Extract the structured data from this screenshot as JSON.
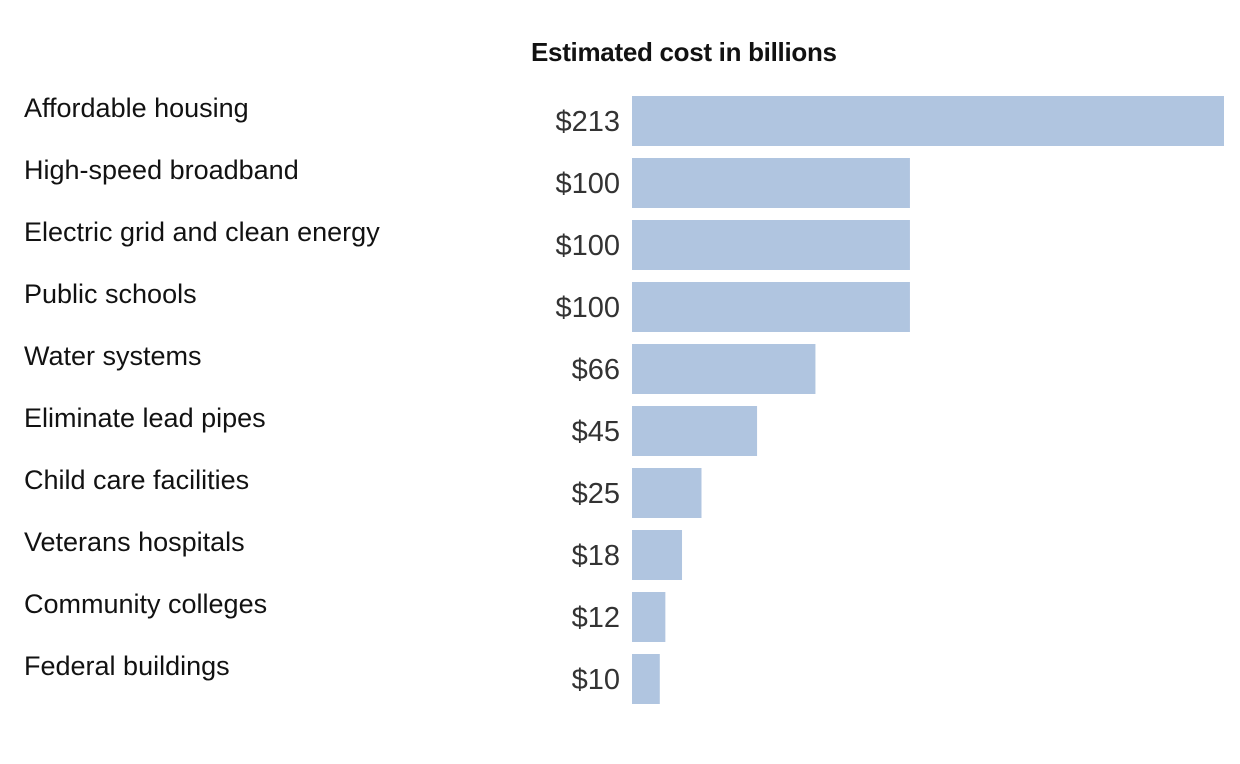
{
  "chart_data": {
    "type": "bar",
    "orientation": "horizontal",
    "title": "Estimated cost in billions",
    "value_prefix": "$",
    "categories": [
      "Affordable housing",
      "High-speed broadband",
      "Electric grid and clean energy",
      "Public schools",
      "Water systems",
      "Eliminate lead pipes",
      "Child care facilities",
      "Veterans hospitals",
      "Community colleges",
      "Federal buildings"
    ],
    "values": [
      213,
      100,
      100,
      100,
      66,
      45,
      25,
      18,
      12,
      10
    ],
    "value_labels": [
      "$213",
      "$100",
      "$100",
      "$100",
      "$66",
      "$45",
      "$25",
      "$18",
      "$12",
      "$10"
    ],
    "xlim": [
      0,
      213
    ],
    "grid": false,
    "legend": "none",
    "bar_color": "#b0c5e0"
  }
}
